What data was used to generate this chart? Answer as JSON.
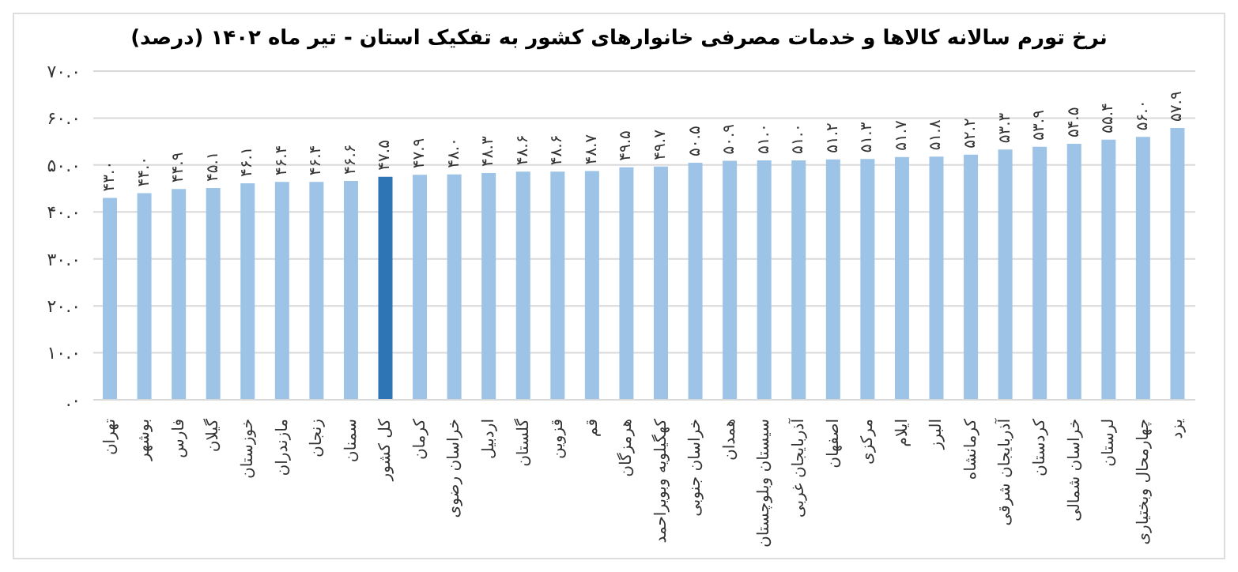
{
  "chart_data": {
    "type": "bar",
    "title": "نرخ تورم سالانه کالاها و خدمات مصرفی خانوارهای کشور به تفکیک استان - تیر ماه ۱۴۰۲ (درصد)",
    "categories": [
      "تهران",
      "بوشهر",
      "فارس",
      "گیلان",
      "خوزستان",
      "مازندران",
      "زنجان",
      "سمنان",
      "کل کشور",
      "کرمان",
      "خراسان رضوی",
      "اردبیل",
      "گلستان",
      "قزوین",
      "قم",
      "هرمزگان",
      "کهگیلویه وبویراحمد",
      "خراسان جنوبی",
      "همدان",
      "سیستان وبلوچستان",
      "آذربایجان غربی",
      "اصفهان",
      "مرکزی",
      "ایلام",
      "البرز",
      "کرمانشاه",
      "آذربایجان شرقی",
      "کردستان",
      "خراسان شمالی",
      "لرستان",
      "چهارمحال وبختیاری",
      "یزد"
    ],
    "values": [
      43.0,
      44.0,
      44.9,
      45.1,
      46.1,
      46.4,
      46.4,
      46.6,
      47.5,
      47.9,
      48.0,
      48.3,
      48.6,
      48.6,
      48.7,
      49.5,
      49.7,
      50.5,
      50.9,
      51.0,
      51.0,
      51.2,
      51.3,
      51.7,
      51.8,
      52.2,
      53.3,
      53.9,
      54.5,
      55.4,
      56.0,
      57.9
    ],
    "value_labels": [
      "۴۳.۰",
      "۴۴.۰",
      "۴۴.۹",
      "۴۵.۱",
      "۴۶.۱",
      "۴۶.۴",
      "۴۶.۴",
      "۴۶.۶",
      "۴۷.۵",
      "۴۷.۹",
      "۴۸.۰",
      "۴۸.۳",
      "۴۸.۶",
      "۴۸.۶",
      "۴۸.۷",
      "۴۹.۵",
      "۴۹.۷",
      "۵۰.۵",
      "۵۰.۹",
      "۵۱.۰",
      "۵۱.۰",
      "۵۱.۲",
      "۵۱.۳",
      "۵۱.۷",
      "۵۱.۸",
      "۵۲.۲",
      "۵۳.۳",
      "۵۳.۹",
      "۵۴.۵",
      "۵۵.۴",
      "۵۶.۰",
      "۵۷.۹"
    ],
    "colors": [
      "#9dc3e6",
      "#9dc3e6",
      "#9dc3e6",
      "#9dc3e6",
      "#9dc3e6",
      "#9dc3e6",
      "#9dc3e6",
      "#9dc3e6",
      "#2e75b6",
      "#9dc3e6",
      "#9dc3e6",
      "#9dc3e6",
      "#9dc3e6",
      "#9dc3e6",
      "#9dc3e6",
      "#9dc3e6",
      "#9dc3e6",
      "#9dc3e6",
      "#9dc3e6",
      "#9dc3e6",
      "#9dc3e6",
      "#9dc3e6",
      "#9dc3e6",
      "#9dc3e6",
      "#9dc3e6",
      "#9dc3e6",
      "#9dc3e6",
      "#9dc3e6",
      "#9dc3e6",
      "#9dc3e6",
      "#9dc3e6",
      "#9dc3e6"
    ],
    "ylim": [
      0,
      70
    ],
    "yticks": [
      {
        "value": 0,
        "label": ".۰"
      },
      {
        "value": 10,
        "label": "۱۰.۰"
      },
      {
        "value": 20,
        "label": "۲۰.۰"
      },
      {
        "value": 30,
        "label": "۳۰.۰"
      },
      {
        "value": 40,
        "label": "۴۰.۰"
      },
      {
        "value": 50,
        "label": "۵۰.۰"
      },
      {
        "value": 60,
        "label": "۶۰.۰"
      },
      {
        "value": 70,
        "label": "۷۰.۰"
      }
    ],
    "grid": "y",
    "legend": false
  }
}
